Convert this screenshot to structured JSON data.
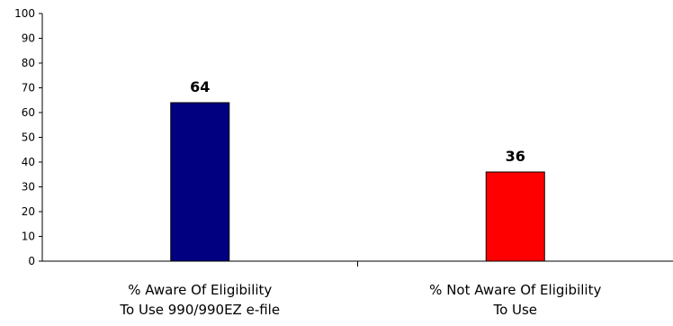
{
  "chart_data": {
    "type": "bar",
    "categories": [
      [
        "% Aware Of Eligibility",
        "To Use 990/990EZ e-file"
      ],
      [
        "% Not Aware Of Eligibility",
        "To Use"
      ]
    ],
    "values": [
      64,
      36
    ],
    "data_labels": [
      "64",
      "36"
    ],
    "bar_colors": [
      "#000080",
      "#ff0000"
    ],
    "ylim": [
      0,
      100
    ],
    "yticks": [
      0,
      10,
      20,
      30,
      40,
      50,
      60,
      70,
      80,
      90,
      100
    ],
    "title": "",
    "xlabel": "",
    "ylabel": "",
    "grid": false,
    "legend": "none"
  }
}
